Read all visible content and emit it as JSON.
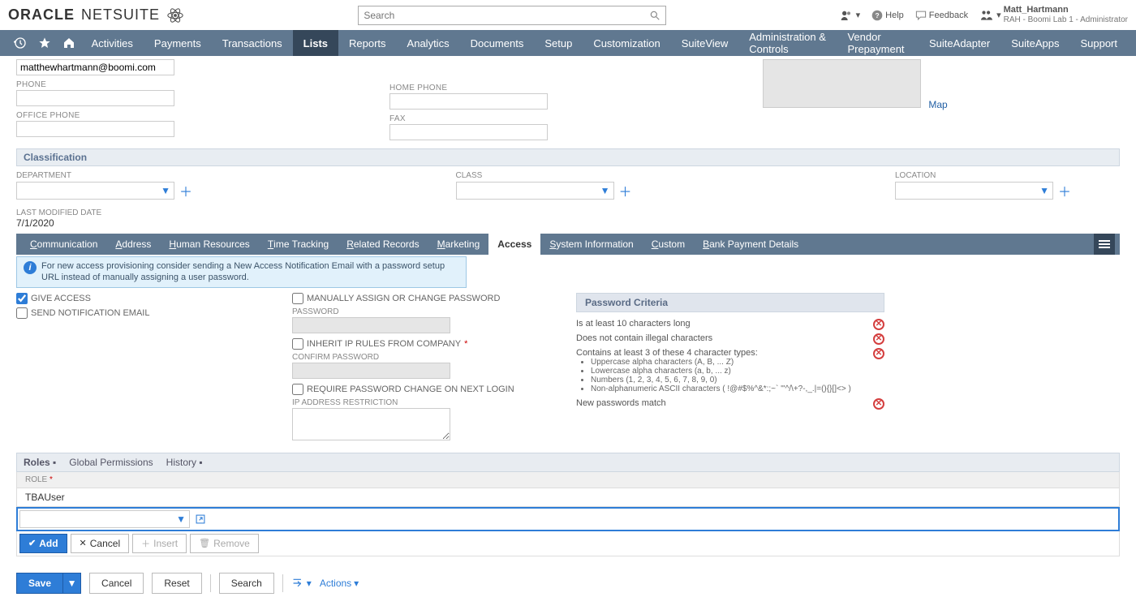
{
  "header": {
    "brand_oracle": "ORACLE",
    "brand_netsuite": "NETSUITE",
    "search_placeholder": "Search",
    "help": "Help",
    "feedback": "Feedback",
    "user_name": "Matt_Hartmann",
    "user_role": "RAH - Boomi Lab 1 - Administrator"
  },
  "nav": {
    "items": [
      "Activities",
      "Payments",
      "Transactions",
      "Lists",
      "Reports",
      "Analytics",
      "Documents",
      "Setup",
      "Customization",
      "SuiteView",
      "Administration & Controls",
      "Vendor Prepayment",
      "SuiteAdapter",
      "SuiteApps",
      "Support"
    ],
    "active": "Lists"
  },
  "contact": {
    "email_value": "matthewhartmann@boomi.com",
    "phone_label": "PHONE",
    "office_phone_label": "OFFICE PHONE",
    "home_phone_label": "HOME PHONE",
    "fax_label": "FAX",
    "map_label": "Map"
  },
  "classification": {
    "title": "Classification",
    "dept_label": "DEPARTMENT",
    "class_label": "CLASS",
    "location_label": "LOCATION",
    "last_mod_label": "LAST MODIFIED DATE",
    "last_mod_value": "7/1/2020"
  },
  "subtabs": {
    "items": [
      "Communication",
      "Address",
      "Human Resources",
      "Time Tracking",
      "Related Records",
      "Marketing",
      "Access",
      "System Information",
      "Custom",
      "Bank Payment Details"
    ],
    "active": "Access"
  },
  "access": {
    "info": "For new access provisioning consider sending a New Access Notification Email with a password setup URL instead of manually assigning a user password.",
    "give_access": "GIVE ACCESS",
    "send_notification": "SEND NOTIFICATION EMAIL",
    "manually_assign": "MANUALLY ASSIGN OR CHANGE PASSWORD",
    "password": "PASSWORD",
    "inherit_ip": "INHERIT IP RULES FROM COMPANY",
    "confirm_password": "CONFIRM PASSWORD",
    "require_change": "REQUIRE PASSWORD CHANGE ON NEXT LOGIN",
    "ip_restriction": "IP ADDRESS RESTRICTION",
    "criteria_title": "Password Criteria",
    "c1": "Is at least 10 characters long",
    "c2": "Does not contain illegal characters",
    "c3": "Contains at least 3 of these 4 character types:",
    "c3a": "Uppercase alpha characters (A, B, ... Z)",
    "c3b": "Lowercase alpha characters (a, b, ... z)",
    "c3c": "Numbers (1, 2, 3, 4, 5, 6, 7, 8, 9, 0)",
    "c3d": "Non-alphanumeric ASCII characters ( !@#$%^&*:;~` '\"^/\\+?-,_.|=(){}[]<> )",
    "c4": "New passwords match"
  },
  "roles": {
    "tabs": [
      "Roles",
      "Global Permissions",
      "History"
    ],
    "active": "Roles",
    "role_header": "ROLE",
    "role_value": "TBAUser",
    "add": "Add",
    "cancel": "Cancel",
    "insert": "Insert",
    "remove": "Remove"
  },
  "page_actions": {
    "save": "Save",
    "cancel": "Cancel",
    "reset": "Reset",
    "search": "Search",
    "actions": "Actions"
  }
}
